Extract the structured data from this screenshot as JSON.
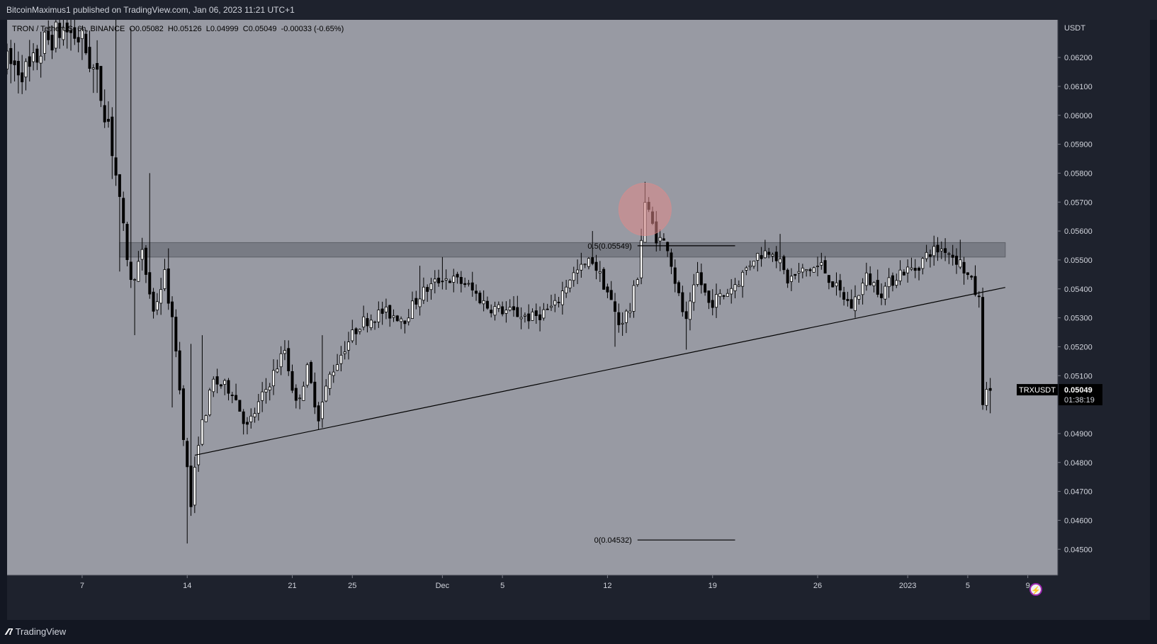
{
  "header": {
    "publisher_text": "BitcoinMaximus1 published on TradingView.com, Jan 06, 2023 11:21 UTC+1"
  },
  "legend": {
    "pair": "TRON / TetherUS, 6h, BINANCE",
    "o_label": "O",
    "o_value": "0.05082",
    "h_label": "H",
    "h_value": "0.05126",
    "l_label": "L",
    "l_value": "0.04999",
    "c_label": "C",
    "c_value": "0.05049",
    "change": "-0.00033 (-0.65%)"
  },
  "footer": {
    "brand": "TradingView",
    "logo_icon": "tv-logo-icon"
  },
  "colors": {
    "background": "#989aa3",
    "candle": "#000000",
    "zone": "#6e7079",
    "circle": "#e08a8a",
    "axis_bg": "#1e222d"
  },
  "chart_data": {
    "type": "candlestick",
    "interval": "6h",
    "currency_label": "USDT",
    "y_ticks": [
      "0.06200",
      "0.06100",
      "0.06000",
      "0.05900",
      "0.05800",
      "0.05700",
      "0.05600",
      "0.05500",
      "0.05400",
      "0.05300",
      "0.05200",
      "0.05100",
      "0.04900",
      "0.04800",
      "0.04700",
      "0.04600",
      "0.04500"
    ],
    "ylim": [
      0.0441,
      0.0633
    ],
    "x_ticks": [
      {
        "label": "7",
        "date": "2022-11-07"
      },
      {
        "label": "14",
        "date": "2022-11-14"
      },
      {
        "label": "21",
        "date": "2022-11-21"
      },
      {
        "label": "25",
        "date": "2022-11-25"
      },
      {
        "label": "Dec",
        "date": "2022-12-01"
      },
      {
        "label": "5",
        "date": "2022-12-05"
      },
      {
        "label": "12",
        "date": "2022-12-12"
      },
      {
        "label": "19",
        "date": "2022-12-19"
      },
      {
        "label": "26",
        "date": "2022-12-26"
      },
      {
        "label": "2023",
        "date": "2023-01-01"
      },
      {
        "label": "5",
        "date": "2023-01-05"
      },
      {
        "label": "9",
        "date": "2023-01-09"
      }
    ],
    "xlim": [
      "2022-11-02T00:00",
      "2023-01-11T00:00"
    ],
    "price_label": {
      "symbol": "TRXUSDT",
      "price": "0.05049",
      "countdown": "01:38:19",
      "value": 0.05049
    },
    "fib_levels": [
      {
        "label": "0.5(0.05549)",
        "price": 0.05549,
        "from": "2022-12-14T00:00",
        "to": "2022-12-20T12:00"
      },
      {
        "label": "0(0.04532)",
        "price": 0.04532,
        "from": "2022-12-14T00:00",
        "to": "2022-12-20T12:00"
      }
    ],
    "resistance_zone": {
      "from": "2022-11-09T12:00",
      "to": "2023-01-07T12:00",
      "low": 0.0551,
      "high": 0.0556
    },
    "trendline": {
      "x1": "2022-11-14T12:00",
      "y1": 0.04825,
      "x2": "2023-01-07T12:00",
      "y2": 0.05405
    },
    "highlight_circle": {
      "x": "2022-12-14T12:00",
      "y": 0.05675
    },
    "anchors": [
      [
        "2022-11-02T00:00",
        0.0618
      ],
      [
        "2022-11-03T12:00",
        0.0615
      ],
      [
        "2022-11-04T12:00",
        0.0625
      ],
      [
        "2022-11-05T18:00",
        0.063
      ],
      [
        "2022-11-07T00:00",
        0.0626
      ],
      [
        "2022-11-08T00:00",
        0.0612
      ],
      [
        "2022-11-08T18:00",
        0.0598
      ],
      [
        "2022-11-09T12:00",
        0.057
      ],
      [
        "2022-11-10T06:00",
        0.0542
      ],
      [
        "2022-11-11T00:00",
        0.0552
      ],
      [
        "2022-11-11T18:00",
        0.0532
      ],
      [
        "2022-11-12T12:00",
        0.0545
      ],
      [
        "2022-11-13T06:00",
        0.052
      ],
      [
        "2022-11-13T18:00",
        0.049
      ],
      [
        "2022-11-14T06:00",
        0.0465
      ],
      [
        "2022-11-14T18:00",
        0.0488
      ],
      [
        "2022-11-15T18:00",
        0.0508
      ],
      [
        "2022-11-17T00:00",
        0.0505
      ],
      [
        "2022-11-18T00:00",
        0.0492
      ],
      [
        "2022-11-19T12:00",
        0.0508
      ],
      [
        "2022-11-20T12:00",
        0.0519
      ],
      [
        "2022-11-21T06:00",
        0.05
      ],
      [
        "2022-11-22T00:00",
        0.0512
      ],
      [
        "2022-11-22T18:00",
        0.0496
      ],
      [
        "2022-11-23T12:00",
        0.051
      ],
      [
        "2022-11-24T12:00",
        0.052
      ],
      [
        "2022-11-25T12:00",
        0.0528
      ],
      [
        "2022-11-27T00:00",
        0.0532
      ],
      [
        "2022-11-28T12:00",
        0.053
      ],
      [
        "2022-11-29T12:00",
        0.0538
      ],
      [
        "2022-12-01T00:00",
        0.0544
      ],
      [
        "2022-12-02T12:00",
        0.0542
      ],
      [
        "2022-12-04T00:00",
        0.0534
      ],
      [
        "2022-12-05T12:00",
        0.0532
      ],
      [
        "2022-12-07T00:00",
        0.053
      ],
      [
        "2022-12-08T12:00",
        0.0534
      ],
      [
        "2022-12-09T12:00",
        0.0544
      ],
      [
        "2022-12-11T00:00",
        0.055
      ],
      [
        "2022-12-12T00:00",
        0.0539
      ],
      [
        "2022-12-12T18:00",
        0.0528
      ],
      [
        "2022-12-13T12:00",
        0.0533
      ],
      [
        "2022-12-14T00:00",
        0.0545
      ],
      [
        "2022-12-14T12:00",
        0.057
      ],
      [
        "2022-12-15T06:00",
        0.0558
      ],
      [
        "2022-12-16T00:00",
        0.0555
      ],
      [
        "2022-12-16T18:00",
        0.0537
      ],
      [
        "2022-12-17T06:00",
        0.0528
      ],
      [
        "2022-12-18T00:00",
        0.0545
      ],
      [
        "2022-12-18T18:00",
        0.0535
      ],
      [
        "2022-12-19T18:00",
        0.0538
      ],
      [
        "2022-12-20T18:00",
        0.0543
      ],
      [
        "2022-12-21T18:00",
        0.0551
      ],
      [
        "2022-12-23T00:00",
        0.0554
      ],
      [
        "2022-12-24T00:00",
        0.0543
      ],
      [
        "2022-12-25T00:00",
        0.0546
      ],
      [
        "2022-12-26T06:00",
        0.0548
      ],
      [
        "2022-12-27T06:00",
        0.054
      ],
      [
        "2022-12-28T06:00",
        0.0534
      ],
      [
        "2022-12-29T06:00",
        0.0544
      ],
      [
        "2022-12-30T06:00",
        0.0539
      ],
      [
        "2022-12-31T12:00",
        0.0546
      ],
      [
        "2023-01-01T12:00",
        0.0547
      ],
      [
        "2023-01-02T12:00",
        0.0553
      ],
      [
        "2023-01-03T12:00",
        0.0554
      ],
      [
        "2023-01-04T12:00",
        0.0549
      ],
      [
        "2023-01-05T06:00",
        0.0542
      ],
      [
        "2023-01-05T18:00",
        0.0536
      ],
      [
        "2023-01-06T00:00",
        0.0502
      ],
      [
        "2023-01-06T12:00",
        0.05049
      ]
    ],
    "wick_spikes": [
      {
        "t": "2022-11-09T06:00",
        "high": 0.0633
      },
      {
        "t": "2022-11-09T12:00",
        "low": 0.0546
      },
      {
        "t": "2022-11-10T06:00",
        "high": 0.063
      },
      {
        "t": "2022-11-10T12:00",
        "low": 0.0524
      },
      {
        "t": "2022-11-11T12:00",
        "high": 0.058
      },
      {
        "t": "2022-11-12T18:00",
        "high": 0.0554
      },
      {
        "t": "2022-11-13T00:00",
        "low": 0.0499
      },
      {
        "t": "2022-11-14T00:00",
        "low": 0.0452
      },
      {
        "t": "2022-11-14T06:00",
        "high": 0.0521
      },
      {
        "t": "2022-11-15T00:00",
        "high": 0.0524
      },
      {
        "t": "2022-11-23T00:00",
        "high": 0.0524
      },
      {
        "t": "2022-11-29T12:00",
        "high": 0.0548
      },
      {
        "t": "2022-12-01T00:00",
        "high": 0.0551
      },
      {
        "t": "2022-12-11T00:00",
        "high": 0.056
      },
      {
        "t": "2022-12-12T12:00",
        "low": 0.052
      },
      {
        "t": "2022-12-14T12:00",
        "high": 0.0577
      },
      {
        "t": "2022-12-17T06:00",
        "low": 0.0519
      },
      {
        "t": "2022-12-23T12:00",
        "high": 0.0559
      },
      {
        "t": "2022-12-28T12:00",
        "low": 0.053
      },
      {
        "t": "2023-01-04T12:00",
        "high": 0.0557
      },
      {
        "t": "2023-01-06T06:00",
        "low": 0.0498
      },
      {
        "t": "2023-01-06T12:00",
        "low": 0.0497
      }
    ]
  }
}
